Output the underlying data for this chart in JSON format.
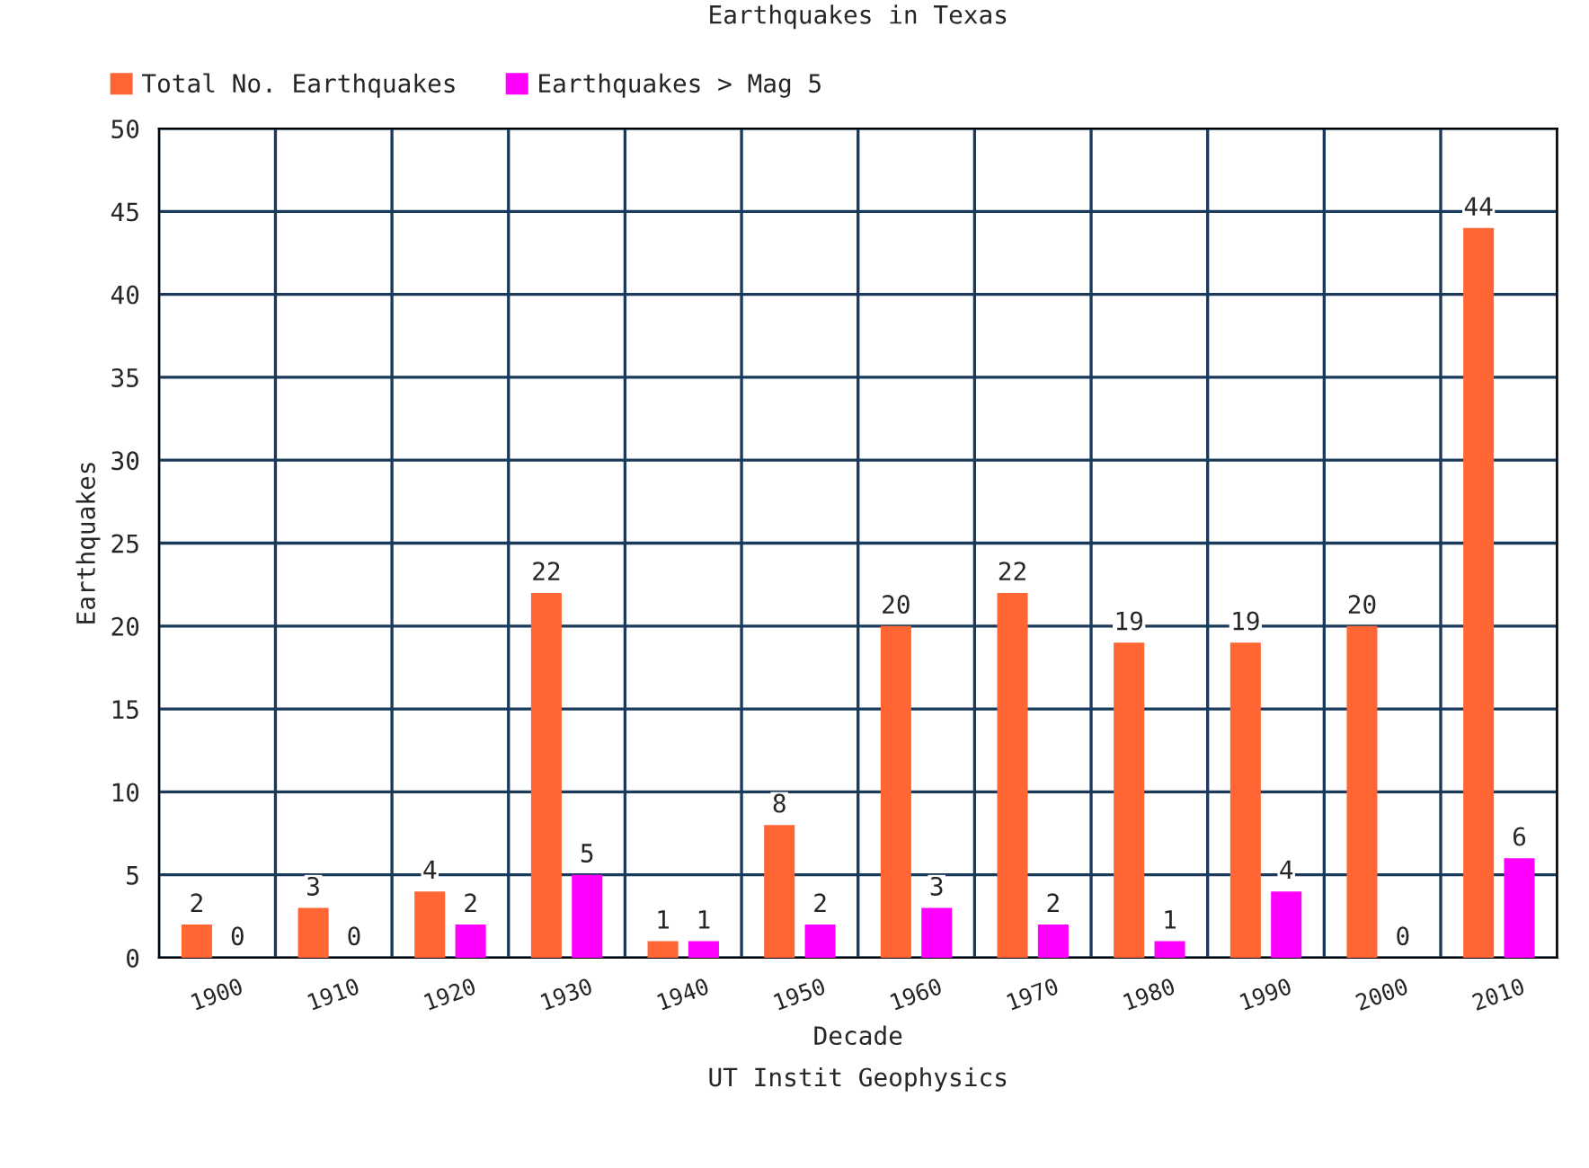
{
  "chart_data": {
    "type": "bar",
    "title": "Earthquakes in Texas",
    "xlabel": "Decade",
    "ylabel": "Earthquakes",
    "annotations": [
      "UT Instit Geophysics"
    ],
    "categories": [
      "1900",
      "1910",
      "1920",
      "1930",
      "1940",
      "1950",
      "1960",
      "1970",
      "1980",
      "1990",
      "2000",
      "2010"
    ],
    "series": [
      {
        "name": "Total No. Earthquakes",
        "color": "#ff6633",
        "values": [
          2,
          3,
          4,
          22,
          1,
          8,
          20,
          22,
          19,
          19,
          20,
          44
        ]
      },
      {
        "name": "Earthquakes > Mag 5",
        "color": "#ff00ff",
        "values": [
          0,
          0,
          2,
          5,
          1,
          2,
          3,
          2,
          1,
          4,
          0,
          6
        ]
      }
    ],
    "ylim": [
      0,
      50
    ],
    "yticks": [
      0,
      5,
      10,
      15,
      20,
      25,
      30,
      35,
      40,
      45,
      50
    ],
    "grid": true,
    "legend": "top left",
    "data_labels": true
  }
}
